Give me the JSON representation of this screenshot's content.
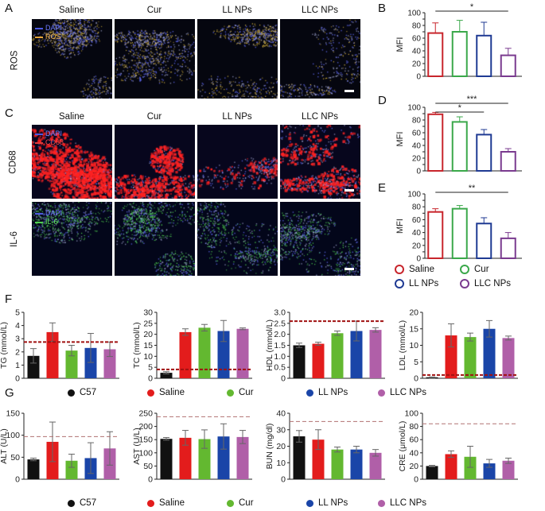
{
  "panel_labels": {
    "A": "A",
    "B": "B",
    "C": "C",
    "D": "D",
    "E": "E",
    "F": "F",
    "G": "G"
  },
  "groups_4": [
    "Saline",
    "Cur",
    "LL NPs",
    "LLC NPs"
  ],
  "row_labels": {
    "ros": "ROS",
    "cd68": "CD68",
    "il6": "IL-6"
  },
  "stain_legend": {
    "ros": [
      {
        "label": "DAPI",
        "color": "#4b58e0"
      },
      {
        "label": "ROS",
        "color": "#e6a53a"
      }
    ],
    "cd68": [
      {
        "label": "DAPI",
        "color": "#4b58e0"
      },
      {
        "label": "CD68",
        "color": "#e23b3b"
      }
    ],
    "il6": [
      {
        "label": "DAPI",
        "color": "#4b58e0"
      },
      {
        "label": "IL-6",
        "color": "#4fcf4f"
      }
    ]
  },
  "legend_4": [
    {
      "label": "Saline",
      "color": "#c8252c"
    },
    {
      "label": "Cur",
      "color": "#3aa84a"
    },
    {
      "label": "LL NPs",
      "color": "#1f3a93"
    },
    {
      "label": "LLC NPs",
      "color": "#7a3b8f"
    }
  ],
  "legend_5": [
    {
      "label": "C57",
      "color": "#111111"
    },
    {
      "label": "Saline",
      "color": "#e31c1c"
    },
    {
      "label": "Cur",
      "color": "#63b830"
    },
    {
      "label": "LL NPs",
      "color": "#1a45a8"
    },
    {
      "label": "LLC NPs",
      "color": "#b05fa8"
    }
  ],
  "chart_data": [
    {
      "id": "B",
      "type": "bar",
      "categories": [
        "Saline",
        "Cur",
        "LL NPs",
        "LLC NPs"
      ],
      "values": [
        68,
        70,
        64,
        33
      ],
      "errors": [
        16,
        18,
        21,
        11
      ],
      "ylabel": "MFI",
      "ylim": [
        0,
        100
      ],
      "yticks": [
        0,
        10,
        20,
        30,
        40,
        50,
        60,
        70,
        80,
        90,
        100
      ],
      "colors": [
        "#c8252c",
        "#3aa84a",
        "#1f3a93",
        "#7a3b8f"
      ],
      "sig": [
        {
          "from": 0,
          "to": 3,
          "label": "*"
        }
      ]
    },
    {
      "id": "D",
      "type": "bar",
      "categories": [
        "Saline",
        "Cur",
        "LL NPs",
        "LLC NPs"
      ],
      "values": [
        89,
        77,
        57,
        30
      ],
      "errors": [
        3,
        8,
        8,
        5
      ],
      "ylabel": "MFI",
      "ylim": [
        0,
        100
      ],
      "yticks": [
        0,
        10,
        20,
        30,
        40,
        50,
        60,
        70,
        80,
        90,
        100
      ],
      "colors": [
        "#c8252c",
        "#3aa84a",
        "#1f3a93",
        "#7a3b8f"
      ],
      "sig": [
        {
          "from": 0,
          "to": 3,
          "label": "***"
        },
        {
          "from": 0,
          "to": 2,
          "label": "*"
        }
      ]
    },
    {
      "id": "E",
      "type": "bar",
      "categories": [
        "Saline",
        "Cur",
        "LL NPs",
        "LLC NPs"
      ],
      "values": [
        72,
        77,
        54,
        31
      ],
      "errors": [
        5,
        5,
        9,
        9
      ],
      "ylabel": "MFI",
      "ylim": [
        0,
        100
      ],
      "yticks": [
        0,
        10,
        20,
        30,
        40,
        50,
        60,
        70,
        80,
        90,
        100
      ],
      "colors": [
        "#c8252c",
        "#3aa84a",
        "#1f3a93",
        "#7a3b8f"
      ],
      "sig": [
        {
          "from": 0,
          "to": 3,
          "label": "**"
        }
      ]
    },
    {
      "id": "TG",
      "type": "bar",
      "categories": [
        "C57",
        "Saline",
        "Cur",
        "LL NPs",
        "LLC NPs"
      ],
      "values": [
        1.7,
        3.5,
        2.1,
        2.3,
        2.2
      ],
      "errors": [
        0.55,
        0.7,
        0.4,
        1.1,
        0.55
      ],
      "ylabel": "TG (mmol/L)",
      "ylim": [
        0,
        5
      ],
      "yticks": [
        0,
        1,
        2,
        3,
        4,
        5
      ],
      "ref": 2.75,
      "ref_color": "#a01010",
      "ref_style": "dense",
      "colors": [
        "#111111",
        "#e31c1c",
        "#63b830",
        "#1a45a8",
        "#b05fa8"
      ]
    },
    {
      "id": "TC",
      "type": "bar",
      "categories": [
        "C57",
        "Saline",
        "Cur",
        "LL NPs",
        "LLC NPs"
      ],
      "values": [
        2.5,
        21,
        23,
        21.5,
        22.5
      ],
      "errors": [
        0.5,
        1.5,
        1.5,
        4.8,
        0.4
      ],
      "ylabel": "TC (mmol/L)",
      "ylim": [
        0,
        30
      ],
      "yticks": [
        0,
        5,
        10,
        15,
        20,
        25,
        30
      ],
      "ref": 4,
      "ref_color": "#a01010",
      "ref_style": "dense",
      "colors": [
        "#111111",
        "#e31c1c",
        "#63b830",
        "#1a45a8",
        "#b05fa8"
      ]
    },
    {
      "id": "HDL",
      "type": "bar",
      "categories": [
        "C57",
        "Saline",
        "Cur",
        "LL NPs",
        "LLC NPs"
      ],
      "values": [
        1.5,
        1.57,
        2.05,
        2.15,
        2.2
      ],
      "errors": [
        0.1,
        0.07,
        0.1,
        0.45,
        0.1
      ],
      "ylabel": "HDL (mmol/L)",
      "ylim": [
        0,
        3.0
      ],
      "yticks": [
        0,
        0.5,
        1.0,
        1.5,
        2.0,
        2.5,
        3.0
      ],
      "ytick_labels": [
        "0",
        "0.5",
        "1.0",
        "1.5",
        "2.0",
        "2.5",
        "3.0"
      ],
      "ref": 2.6,
      "ref_color": "#a01010",
      "ref_style": "dense",
      "colors": [
        "#111111",
        "#e31c1c",
        "#63b830",
        "#1a45a8",
        "#b05fa8"
      ]
    },
    {
      "id": "LDL",
      "type": "bar",
      "categories": [
        "C57",
        "Saline",
        "Cur",
        "LL NPs",
        "LLC NPs"
      ],
      "values": [
        0.3,
        13,
        12.5,
        15,
        12.2
      ],
      "errors": [
        0.1,
        3.5,
        1.2,
        2.5,
        0.6
      ],
      "ylabel": "LDL (mmol/L)",
      "ylim": [
        0,
        20
      ],
      "yticks": [
        0,
        5,
        10,
        15,
        20
      ],
      "ref": 1,
      "ref_color": "#a01010",
      "ref_style": "dense",
      "colors": [
        "#111111",
        "#e31c1c",
        "#63b830",
        "#1a45a8",
        "#b05fa8"
      ]
    },
    {
      "id": "ALT",
      "type": "bar",
      "categories": [
        "C57",
        "Saline",
        "Cur",
        "LL NPs",
        "LLC NPs"
      ],
      "values": [
        45,
        85,
        42,
        48,
        70
      ],
      "errors": [
        3,
        45,
        15,
        35,
        38
      ],
      "ylabel": "ALT (U/L)",
      "ylim": [
        0,
        150
      ],
      "yticks": [
        0,
        50,
        100,
        150
      ],
      "ref": 97,
      "ref_color": "#b07070",
      "ref_style": "sparse",
      "colors": [
        "#111111",
        "#e31c1c",
        "#63b830",
        "#1a45a8",
        "#b05fa8"
      ]
    },
    {
      "id": "AST",
      "type": "bar",
      "categories": [
        "C57",
        "Saline",
        "Cur",
        "LL NPs",
        "LLC NPs"
      ],
      "values": [
        153,
        157,
        152,
        162,
        160
      ],
      "errors": [
        5,
        28,
        35,
        48,
        25
      ],
      "ylabel": "AST (U/L)",
      "ylim": [
        0,
        250
      ],
      "yticks": [
        0,
        50,
        100,
        150,
        200,
        250
      ],
      "ref": 237,
      "ref_color": "#b07070",
      "ref_style": "sparse",
      "colors": [
        "#111111",
        "#e31c1c",
        "#63b830",
        "#1a45a8",
        "#b05fa8"
      ]
    },
    {
      "id": "BUN",
      "type": "bar",
      "categories": [
        "C57",
        "Saline",
        "Cur",
        "LL NPs",
        "LLC NPs"
      ],
      "values": [
        26,
        24,
        18,
        18,
        16
      ],
      "errors": [
        3.5,
        6,
        1.5,
        2,
        2
      ],
      "ylabel": "BUN (mg/dl)",
      "ylim": [
        0,
        40
      ],
      "yticks": [
        0,
        10,
        20,
        30,
        40
      ],
      "ref": 35,
      "ref_color": "#b07070",
      "ref_style": "sparse",
      "colors": [
        "#111111",
        "#e31c1c",
        "#63b830",
        "#1a45a8",
        "#b05fa8"
      ]
    },
    {
      "id": "CRE",
      "type": "bar",
      "categories": [
        "C57",
        "Saline",
        "Cur",
        "LL NPs",
        "LLC NPs"
      ],
      "values": [
        20,
        38,
        34,
        24,
        28
      ],
      "errors": [
        1,
        5,
        16,
        6,
        4
      ],
      "ylabel": "CRE (μmol/L)",
      "ylim": [
        0,
        100
      ],
      "yticks": [
        0,
        20,
        40,
        60,
        80,
        100
      ],
      "ref": 84,
      "ref_color": "#b07070",
      "ref_style": "sparse",
      "colors": [
        "#111111",
        "#e31c1c",
        "#63b830",
        "#1a45a8",
        "#b05fa8"
      ]
    }
  ]
}
